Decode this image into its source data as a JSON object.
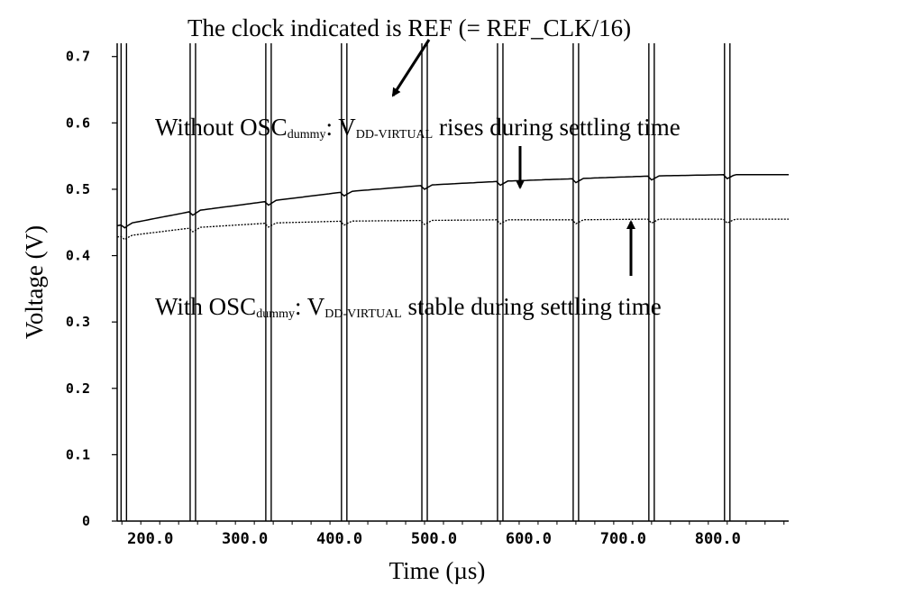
{
  "chart_data": {
    "type": "line",
    "title": "",
    "xlabel": "Time (µs)",
    "ylabel": "Voltage (V)",
    "xlim": [
      165,
      875
    ],
    "ylim": [
      0,
      0.72
    ],
    "x_ticks": [
      "200.0",
      "300.0",
      "400.0",
      "500.0",
      "600.0",
      "700.0",
      "800.0"
    ],
    "x_tick_values": [
      200,
      300,
      400,
      500,
      600,
      700,
      800
    ],
    "y_ticks": [
      "0",
      "0.1",
      "0.2",
      "0.3",
      "0.4",
      "0.5",
      "0.6",
      "0.7"
    ],
    "y_tick_values": [
      0,
      0.1,
      0.2,
      0.3,
      0.4,
      0.5,
      0.6,
      0.7
    ],
    "clock": {
      "name": "REF",
      "edges": [
        172,
        245,
        325,
        405,
        490,
        570,
        650,
        730,
        810
      ],
      "high": 0.72,
      "low": 0.0
    },
    "series": [
      {
        "name": "Without OSCdummy",
        "style": "solid",
        "x": [
          165,
          245,
          325,
          405,
          490,
          570,
          650,
          730,
          810,
          875
        ],
        "y": [
          0.445,
          0.467,
          0.482,
          0.496,
          0.506,
          0.512,
          0.516,
          0.52,
          0.522,
          0.522
        ]
      },
      {
        "name": "With OSCdummy",
        "style": "dotted",
        "x": [
          165,
          245,
          325,
          405,
          490,
          570,
          650,
          730,
          810,
          875
        ],
        "y": [
          0.428,
          0.442,
          0.449,
          0.452,
          0.453,
          0.454,
          0.454,
          0.455,
          0.455,
          0.455
        ]
      }
    ],
    "annotations": {
      "clock_note": "The clock indicated is REF (= REF_CLK/16)",
      "without": {
        "prefix": "Without OSC",
        "sub1": "dummy",
        "mid": ": V",
        "sub2": "DD-VIRTUAL",
        "suffix": " rises during settling time"
      },
      "with": {
        "prefix": "With OSC",
        "sub1": "dummy",
        "mid": ": V",
        "sub2": "DD-VIRTUAL",
        "suffix": " stable during settling time"
      }
    }
  }
}
